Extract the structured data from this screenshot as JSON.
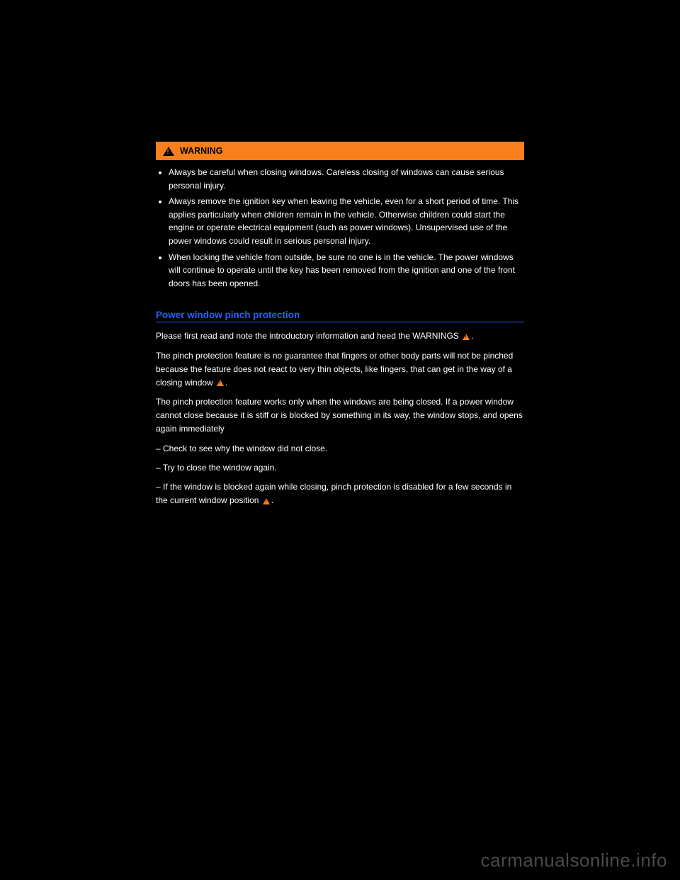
{
  "warning": {
    "label": "WARNING",
    "bullets": [
      "Always be careful when closing windows. Careless closing of windows can cause serious personal injury.",
      "Always remove the ignition key when leaving the vehicle, even for a short period of time. This applies particularly when children remain in the vehicle. Otherwise children could start the engine or operate electrical equipment (such as power windows). Unsupervised use of the power windows could result in serious personal injury.",
      "When locking the vehicle from outside, be sure no one is in the vehicle. The power windows will continue to operate until the key has been removed from the ignition and one of the front doors has been opened."
    ]
  },
  "section": {
    "title": "Power window pinch protection",
    "para1_before": "Please first read and note the introductory information and heed the WARNINGS ",
    "para1_after": ".",
    "para2_before": "The pinch protection feature is no guarantee that fingers or other body parts will not be pinched because the feature does not react to very thin objects, like fingers, that can get in the way of a closing window ",
    "para2_after": ".",
    "para3": "The pinch protection feature works only when the windows are being closed. If a power window cannot close because it is stiff or is blocked by something in its way, the window stops, and opens again immediately",
    "para4": "– Check to see why the window did not close.",
    "para5": "– Try to close the window again.",
    "para6_before": "– If the window is blocked again while closing, pinch protection is disabled for a few seconds in the current window position ",
    "para6_after": "."
  },
  "watermark": "carmanualsonline.info"
}
